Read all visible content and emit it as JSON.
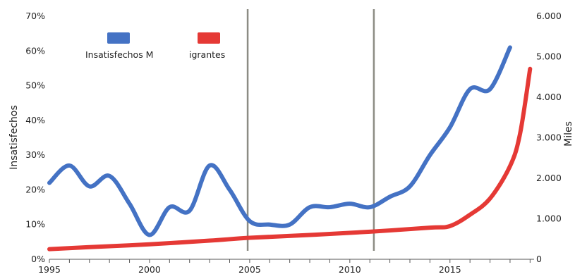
{
  "chart_data": {
    "type": "line",
    "title": "",
    "xlabel": "",
    "ylabel_left": "Insatisfechos",
    "ylabel_right": "Miles",
    "xlim": [
      1995,
      2019.2
    ],
    "ylim_left": [
      0,
      70
    ],
    "ylim_right": [
      0,
      6000
    ],
    "x_ticks": [
      1995,
      2000,
      2005,
      2010,
      2015
    ],
    "x_tick_labels": [
      "1995",
      "2000",
      "2005",
      "2010",
      "2015"
    ],
    "y_left_ticks": [
      0,
      10,
      20,
      30,
      40,
      50,
      60,
      70
    ],
    "y_left_tick_labels": [
      "0%",
      "10%",
      "20%",
      "30%",
      "40%",
      "50%",
      "60%",
      "70%"
    ],
    "y_right_ticks": [
      0,
      1000,
      2000,
      3000,
      4000,
      5000,
      6000
    ],
    "y_right_tick_labels": [
      "0",
      "1.000",
      "2.000",
      "3.000",
      "4.000",
      "5.000",
      "6.000"
    ],
    "grid": false,
    "legend_position": "top-left",
    "vertical_lines": [
      2004.9,
      2011.2
    ],
    "series": [
      {
        "name": "Insatisfechos",
        "legend_label": "Insatisfechos M",
        "axis": "left",
        "color": "#4472c4",
        "x": [
          1995,
          1996,
          1997,
          1998,
          1999,
          2000,
          2001,
          2002,
          2003,
          2004,
          2005,
          2006,
          2007,
          2008,
          2009,
          2010,
          2011,
          2012,
          2013,
          2014,
          2015,
          2016,
          2017,
          2018
        ],
        "y": [
          22,
          27,
          21,
          24,
          16,
          7,
          15,
          14,
          27,
          20,
          11,
          10,
          10,
          15,
          15,
          16,
          15,
          18,
          21,
          30,
          38,
          49,
          49,
          61
        ]
      },
      {
        "name": "Migrantes",
        "legend_label": "igrantes",
        "axis": "right",
        "color": "#e53935",
        "x": [
          1995,
          1997,
          2000,
          2003,
          2005,
          2008,
          2011,
          2014,
          2015,
          2016,
          2017,
          2018,
          2018.5,
          2019
        ],
        "y": [
          250,
          300,
          370,
          460,
          530,
          600,
          680,
          780,
          820,
          1100,
          1500,
          2300,
          3100,
          4700
        ]
      }
    ]
  }
}
